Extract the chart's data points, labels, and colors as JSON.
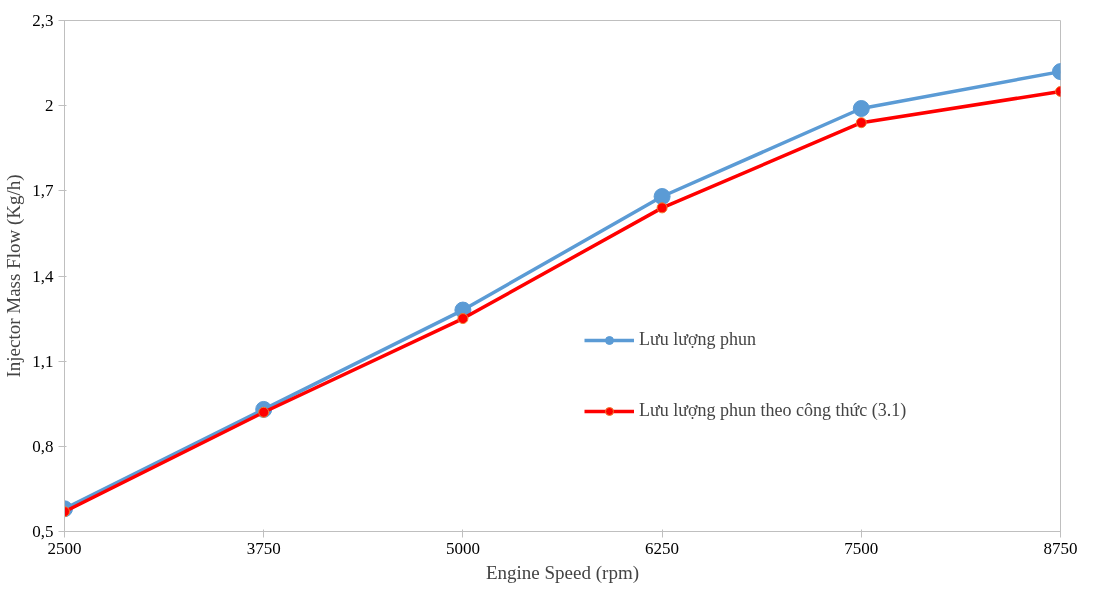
{
  "chart_data": {
    "type": "line",
    "xlabel": "Engine Speed (rpm)",
    "ylabel": "Injector Mass Flow (Kg/h)",
    "x": [
      2500,
      3750,
      5000,
      6250,
      7500,
      8750
    ],
    "series": [
      {
        "name": "Lưu lượng phun",
        "color": "#5b9bd5",
        "values": [
          0.58,
          0.93,
          1.28,
          1.68,
          1.99,
          2.12
        ]
      },
      {
        "name": "Lưu lượng phun theo công thức (3.1)",
        "color": "#ff0000",
        "values": [
          0.57,
          0.92,
          1.25,
          1.64,
          1.94,
          2.05
        ]
      }
    ],
    "xlim": [
      2500,
      8750
    ],
    "xticks": [
      2500,
      3750,
      5000,
      6250,
      7500,
      8750
    ],
    "ylim": [
      0.5,
      2.3
    ],
    "yticks": [
      {
        "value": 0.5,
        "label": "0,5"
      },
      {
        "value": 0.8,
        "label": "0,8"
      },
      {
        "value": 1.1,
        "label": "1,1"
      },
      {
        "value": 1.4,
        "label": "1,4"
      },
      {
        "value": 1.7,
        "label": "1,7"
      },
      {
        "value": 2,
        "label": "2"
      },
      {
        "value": 2.3,
        "label": "2,3"
      }
    ],
    "marker": "circle",
    "line_style": "solid",
    "grid": false,
    "legend": "right"
  }
}
